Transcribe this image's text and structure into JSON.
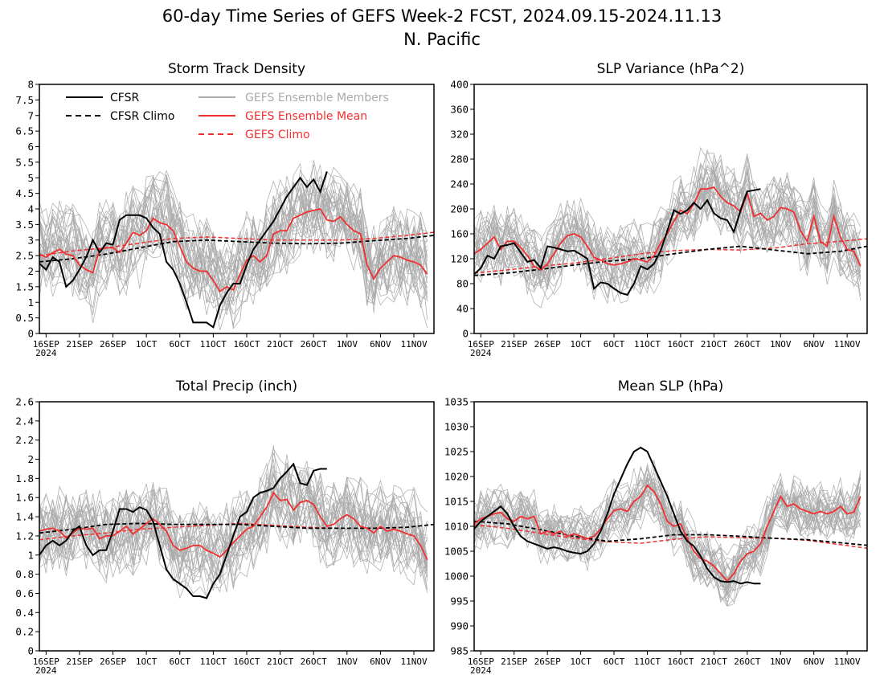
{
  "figure": {
    "title_line1": "60-day Time Series of GEFS Week-2 FCST, 2024.09.15-2024.11.13",
    "title_line2": "N. Pacific"
  },
  "colors": {
    "cfsr": "#000000",
    "members": "#aaaaaa",
    "ens_mean": "#f03030",
    "gefs_clim": "#f03030"
  },
  "legend": {
    "cfsr": "CFSR",
    "cfsr_clim": "CFSR Climo",
    "members": "GEFS Ensemble Members",
    "ens_mean": "GEFS Ensemble Mean",
    "gefs_clim": "GEFS Climo"
  },
  "x_axis": {
    "tick_days": [
      1,
      6,
      11,
      16,
      21,
      26,
      31,
      36,
      41,
      46,
      51,
      56
    ],
    "tick_labels": [
      "16SEP",
      "21SEP",
      "26SEP",
      "1OCT",
      "6OCT",
      "11OCT",
      "16OCT",
      "21OCT",
      "26OCT",
      "1NOV",
      "6NOV",
      "11NOV"
    ],
    "year_label": "2024",
    "range_days": [
      0,
      59
    ]
  },
  "chart_data": [
    {
      "type": "line",
      "title": "Storm Track Density",
      "ylim": [
        0,
        8
      ],
      "yticks": [
        "0",
        "0.5",
        "1",
        "1.5",
        "2",
        "2.5",
        "3",
        "3.5",
        "4",
        "4.5",
        "5",
        "5.5",
        "6",
        "6.5",
        "7",
        "7.5",
        "8"
      ],
      "ytick_values": [
        0,
        0.5,
        1,
        1.5,
        2,
        2.5,
        3,
        3.5,
        4,
        4.5,
        5,
        5.5,
        6,
        6.5,
        7,
        7.5,
        8
      ],
      "member_spread": 1.3,
      "series": {
        "cfsr_day": [
          0,
          1,
          2,
          3,
          4,
          5,
          6,
          7,
          8,
          9,
          10,
          11,
          12,
          13,
          14,
          15,
          16,
          17,
          18,
          19,
          20,
          21,
          22,
          23,
          24,
          25,
          26,
          27,
          28,
          29,
          30,
          31,
          32,
          33,
          34,
          35,
          36,
          37,
          38,
          39,
          40,
          41,
          42,
          43
        ],
        "cfsr": [
          2.25,
          2.05,
          2.45,
          2.3,
          1.5,
          1.7,
          2.05,
          2.45,
          3.0,
          2.6,
          2.9,
          2.85,
          3.65,
          3.8,
          3.8,
          3.8,
          3.7,
          3.4,
          3.2,
          2.3,
          2.05,
          1.6,
          1.0,
          0.35,
          0.35,
          0.35,
          0.2,
          0.9,
          1.3,
          1.6,
          1.6,
          2.2,
          2.7,
          3.0,
          3.3,
          3.6,
          4.0,
          4.4,
          4.7,
          5.0,
          4.7,
          4.95,
          4.55,
          5.2
        ],
        "ens_mean": [
          2.55,
          2.45,
          2.6,
          2.7,
          2.55,
          2.5,
          2.2,
          2.05,
          1.95,
          2.7,
          2.75,
          2.75,
          2.6,
          2.9,
          3.25,
          3.15,
          3.3,
          3.7,
          3.55,
          3.5,
          3.3,
          2.8,
          2.3,
          2.1,
          2.0,
          2.0,
          1.7,
          1.35,
          1.5,
          1.4,
          1.9,
          2.35,
          2.5,
          2.3,
          2.5,
          3.2,
          3.3,
          3.3,
          3.7,
          3.8,
          3.9,
          3.95,
          4.0,
          3.65,
          3.6,
          3.75,
          3.5,
          3.3,
          3.2,
          2.2,
          1.75,
          2.1,
          2.3,
          2.5,
          2.45,
          2.35,
          2.3,
          2.2,
          1.9
        ],
        "cfsr_clim_x": [
          0,
          5,
          10,
          15,
          20,
          25,
          30,
          35,
          40,
          45,
          50,
          55,
          59
        ],
        "cfsr_clim": [
          2.3,
          2.4,
          2.55,
          2.75,
          2.95,
          3.0,
          2.95,
          2.9,
          2.88,
          2.9,
          2.98,
          3.05,
          3.15
        ],
        "gefs_clim_x": [
          0,
          5,
          10,
          15,
          20,
          25,
          30,
          35,
          40,
          45,
          50,
          55,
          59
        ],
        "gefs_clim": [
          2.5,
          2.65,
          2.75,
          2.9,
          3.05,
          3.1,
          3.05,
          3.0,
          3.0,
          3.0,
          3.05,
          3.15,
          3.25
        ]
      }
    },
    {
      "type": "line",
      "title": "SLP Variance (hPa^2)",
      "ylim": [
        0,
        400
      ],
      "yticks": [
        "0",
        "40",
        "80",
        "120",
        "160",
        "200",
        "240",
        "280",
        "320",
        "360",
        "400"
      ],
      "ytick_values": [
        0,
        40,
        80,
        120,
        160,
        200,
        240,
        280,
        320,
        360,
        400
      ],
      "member_spread": 50,
      "series": {
        "cfsr_day": [
          0,
          1,
          2,
          3,
          4,
          5,
          6,
          7,
          8,
          9,
          10,
          11,
          12,
          13,
          14,
          15,
          16,
          17,
          18,
          19,
          20,
          21,
          22,
          23,
          24,
          25,
          26,
          27,
          28,
          29,
          30,
          31,
          32,
          33,
          34,
          35,
          36,
          37,
          38,
          39,
          40,
          41,
          42,
          43
        ],
        "cfsr": [
          95,
          105,
          125,
          120,
          140,
          142,
          145,
          130,
          115,
          118,
          105,
          140,
          138,
          135,
          132,
          133,
          127,
          120,
          72,
          82,
          80,
          72,
          65,
          62,
          80,
          108,
          103,
          112,
          133,
          165,
          198,
          192,
          198,
          210,
          200,
          214,
          193,
          185,
          182,
          163,
          198,
          228,
          230,
          232
        ],
        "ens_mean": [
          128,
          135,
          145,
          155,
          135,
          148,
          148,
          138,
          125,
          108,
          102,
          112,
          128,
          145,
          157,
          160,
          155,
          140,
          122,
          118,
          112,
          110,
          112,
          115,
          120,
          118,
          115,
          125,
          145,
          160,
          180,
          198,
          192,
          208,
          232,
          232,
          235,
          220,
          210,
          205,
          195,
          225,
          188,
          193,
          182,
          188,
          202,
          200,
          195,
          165,
          148,
          188,
          148,
          140,
          188,
          155,
          135,
          132,
          108
        ],
        "cfsr_clim_x": [
          0,
          5,
          10,
          15,
          20,
          25,
          30,
          35,
          40,
          45,
          50,
          55,
          59
        ],
        "cfsr_clim": [
          93,
          97,
          103,
          110,
          116,
          120,
          128,
          135,
          140,
          134,
          128,
          132,
          140
        ],
        "gefs_clim_x": [
          0,
          5,
          10,
          15,
          20,
          25,
          30,
          35,
          40,
          45,
          50,
          55,
          59
        ],
        "gefs_clim": [
          97,
          102,
          108,
          113,
          120,
          128,
          133,
          135,
          134,
          137,
          144,
          148,
          152
        ]
      }
    },
    {
      "type": "line",
      "title": "Total Precip (inch)",
      "ylim": [
        0,
        2.6
      ],
      "yticks": [
        "0",
        "0.2",
        "0.4",
        "0.6",
        "0.8",
        "1",
        "1.2",
        "1.4",
        "1.6",
        "1.8",
        "2",
        "2.2",
        "2.4",
        "2.6"
      ],
      "ytick_values": [
        0,
        0.2,
        0.4,
        0.6,
        0.8,
        1.0,
        1.2,
        1.4,
        1.6,
        1.8,
        2.0,
        2.2,
        2.4,
        2.6
      ],
      "member_spread": 0.38,
      "series": {
        "cfsr_day": [
          0,
          1,
          2,
          3,
          4,
          5,
          6,
          7,
          8,
          9,
          10,
          11,
          12,
          13,
          14,
          15,
          16,
          17,
          18,
          19,
          20,
          21,
          22,
          23,
          24,
          25,
          26,
          27,
          28,
          29,
          30,
          31,
          32,
          33,
          34,
          35,
          36,
          37,
          38,
          39,
          40,
          41,
          42,
          43
        ],
        "cfsr": [
          1.0,
          1.1,
          1.15,
          1.1,
          1.15,
          1.25,
          1.3,
          1.1,
          1.0,
          1.05,
          1.05,
          1.25,
          1.48,
          1.48,
          1.45,
          1.5,
          1.47,
          1.35,
          1.1,
          0.85,
          0.75,
          0.7,
          0.65,
          0.57,
          0.57,
          0.55,
          0.7,
          0.8,
          1.0,
          1.2,
          1.4,
          1.45,
          1.6,
          1.65,
          1.67,
          1.7,
          1.8,
          1.87,
          1.95,
          1.75,
          1.73,
          1.88,
          1.9,
          1.9
        ],
        "ens_mean": [
          1.25,
          1.27,
          1.28,
          1.25,
          1.18,
          1.23,
          1.28,
          1.27,
          1.28,
          1.17,
          1.2,
          1.2,
          1.25,
          1.3,
          1.22,
          1.27,
          1.33,
          1.38,
          1.32,
          1.25,
          1.1,
          1.05,
          1.07,
          1.1,
          1.1,
          1.05,
          1.02,
          0.98,
          1.05,
          1.13,
          1.2,
          1.27,
          1.3,
          1.4,
          1.5,
          1.65,
          1.57,
          1.58,
          1.47,
          1.55,
          1.57,
          1.53,
          1.4,
          1.3,
          1.32,
          1.38,
          1.42,
          1.38,
          1.3,
          1.28,
          1.23,
          1.3,
          1.25,
          1.27,
          1.25,
          1.22,
          1.2,
          1.1,
          0.95
        ],
        "cfsr_clim_x": [
          0,
          5,
          10,
          15,
          20,
          25,
          30,
          35,
          40,
          45,
          50,
          55,
          59
        ],
        "cfsr_clim": [
          1.23,
          1.27,
          1.32,
          1.33,
          1.32,
          1.32,
          1.32,
          1.3,
          1.28,
          1.28,
          1.28,
          1.29,
          1.32
        ],
        "gefs_clim_x": [
          0,
          5,
          10,
          15,
          20,
          25,
          30,
          35,
          40,
          45,
          50,
          55,
          59
        ],
        "gefs_clim": [
          1.16,
          1.2,
          1.23,
          1.27,
          1.29,
          1.31,
          1.33,
          1.31,
          1.29,
          1.28,
          1.28,
          1.29,
          1.32
        ]
      }
    },
    {
      "type": "line",
      "title": "Mean SLP (hPa)",
      "ylim": [
        985,
        1035
      ],
      "yticks": [
        "985",
        "990",
        "995",
        "1000",
        "1005",
        "1010",
        "1015",
        "1020",
        "1025",
        "1030",
        "1035"
      ],
      "ytick_values": [
        985,
        990,
        995,
        1000,
        1005,
        1010,
        1015,
        1020,
        1025,
        1030,
        1035
      ],
      "member_spread": 5,
      "series": {
        "cfsr_day": [
          0,
          1,
          2,
          3,
          4,
          5,
          6,
          7,
          8,
          9,
          10,
          11,
          12,
          13,
          14,
          15,
          16,
          17,
          18,
          19,
          20,
          21,
          22,
          23,
          24,
          25,
          26,
          27,
          28,
          29,
          30,
          31,
          32,
          33,
          34,
          35,
          36,
          37,
          38,
          39,
          40,
          41,
          42,
          43
        ],
        "cfsr": [
          1009.5,
          1011,
          1012,
          1013,
          1014,
          1012.5,
          1010,
          1008,
          1007,
          1006.5,
          1006,
          1005.5,
          1005.8,
          1005.5,
          1005,
          1004.7,
          1004.5,
          1005,
          1006.5,
          1009,
          1012.5,
          1016.5,
          1019.5,
          1022.5,
          1025,
          1025.8,
          1025,
          1022,
          1019,
          1016,
          1012.5,
          1009,
          1007,
          1006,
          1004,
          1001.5,
          999.8,
          999,
          998.8,
          999,
          998.5,
          998.8,
          998.5,
          998.5
        ],
        "ens_mean": [
          1010.5,
          1011.5,
          1012,
          1012.5,
          1012.8,
          1011.5,
          1011,
          1012,
          1011.5,
          1012,
          1008.5,
          1009,
          1008.5,
          1009,
          1008,
          1008.5,
          1008,
          1007.5,
          1008,
          1009.5,
          1011.5,
          1013.2,
          1013.5,
          1013,
          1015,
          1016,
          1018.2,
          1017,
          1014.5,
          1011,
          1010,
          1010.5,
          1007.5,
          1005,
          1003.5,
          1003,
          1002,
          1000.5,
          999,
          1000.5,
          1003,
          1004.5,
          1005,
          1006.5,
          1010,
          1013,
          1016,
          1014,
          1014.5,
          1013.5,
          1013,
          1012.5,
          1013,
          1012.5,
          1013,
          1014,
          1012.5,
          1012.8,
          1016
        ],
        "cfsr_clim_x": [
          0,
          5,
          10,
          15,
          20,
          25,
          30,
          35,
          40,
          45,
          50,
          55,
          59
        ],
        "cfsr_clim": [
          1011,
          1010.5,
          1009.3,
          1008,
          1007,
          1007.5,
          1008.3,
          1008.3,
          1008,
          1007.6,
          1007.3,
          1006.7,
          1006.2
        ],
        "gefs_clim_x": [
          0,
          5,
          10,
          15,
          20,
          25,
          30,
          35,
          40,
          45,
          50,
          55,
          59
        ],
        "gefs_clim": [
          1010.3,
          1009.6,
          1008.6,
          1007.6,
          1006.9,
          1006.6,
          1007.4,
          1007.9,
          1007.7,
          1007.6,
          1007.2,
          1006.3,
          1005.6
        ]
      }
    }
  ]
}
